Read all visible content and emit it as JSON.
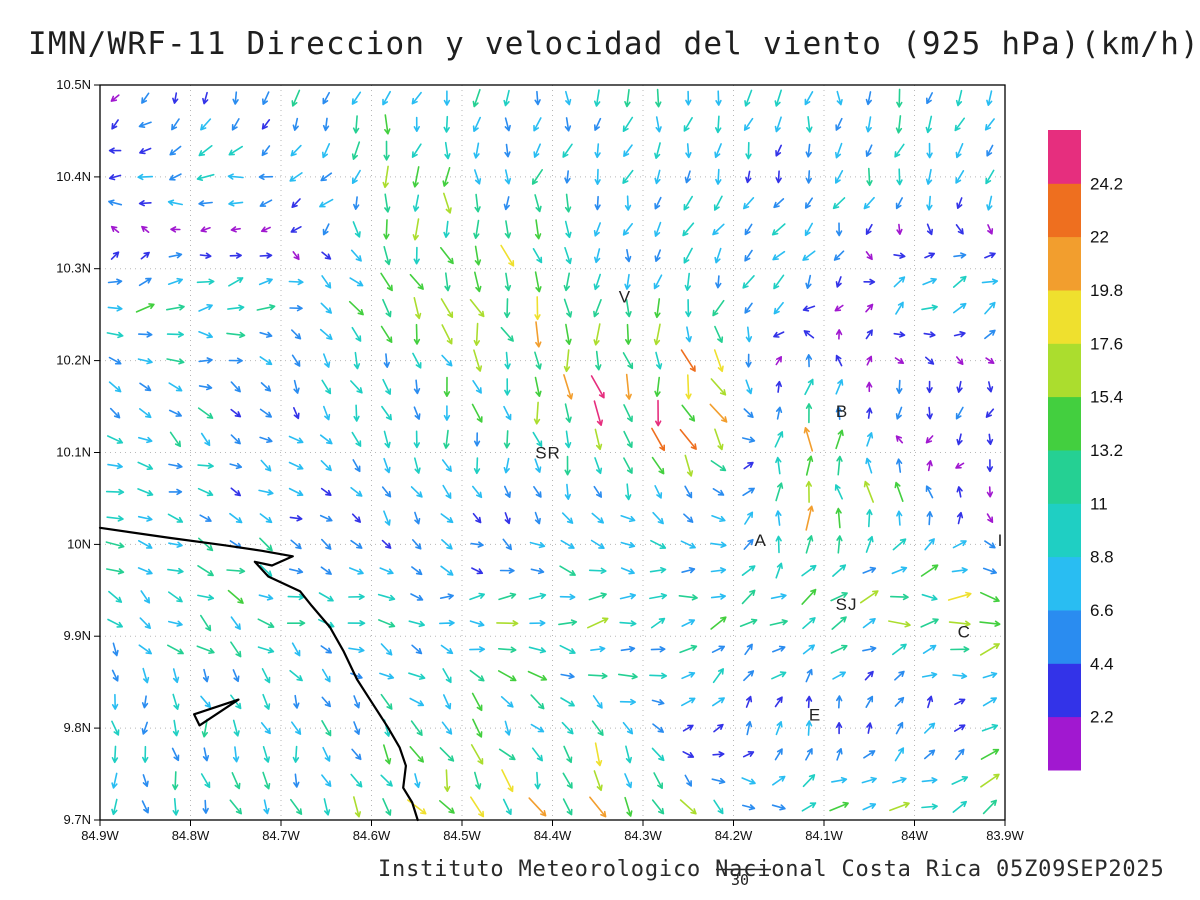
{
  "chart_data": {
    "type": "vector_field",
    "title": "IMN/WRF-11 Direccion y velocidad del viento (925 hPa)(km/h)",
    "credit": "Instituto Meteorologico Nacional Costa Rica 05Z09SEP2025",
    "footnote": "30",
    "units": "km/h",
    "level": "925 hPa",
    "ranges": {
      "lon_west": 84.9,
      "lon_east": 83.9,
      "lat_north": 10.5,
      "lat_south": 9.7
    },
    "x_axis": {
      "labels": [
        "84.9W",
        "84.8W",
        "84.7W",
        "84.6W",
        "84.5W",
        "84.4W",
        "84.3W",
        "84.2W",
        "84.1W",
        "84W",
        "83.9W"
      ],
      "values": [
        84.9,
        84.8,
        84.7,
        84.6,
        84.5,
        84.4,
        84.3,
        84.2,
        84.1,
        84.0,
        83.9
      ]
    },
    "y_axis": {
      "labels": [
        "10.5N",
        "10.4N",
        "10.3N",
        "10.2N",
        "10.1N",
        "10N",
        "9.9N",
        "9.8N",
        "9.7N"
      ],
      "values": [
        10.5,
        10.4,
        10.3,
        10.2,
        10.1,
        10.0,
        9.9,
        9.8,
        9.7
      ]
    },
    "colorbar": {
      "levels": [
        2.2,
        4.4,
        6.6,
        8.8,
        11,
        13.2,
        15.4,
        17.6,
        19.8,
        22,
        24.2
      ],
      "labels": [
        "2.2",
        "4.4",
        "6.6",
        "8.8",
        "11",
        "13.2",
        "15.4",
        "17.6",
        "19.8",
        "22",
        "24.2"
      ],
      "colors": [
        "#a118d0",
        "#3333e8",
        "#2a8cf0",
        "#29bdf2",
        "#1fcfc3",
        "#25d093",
        "#43cf3f",
        "#abdd2e",
        "#efe02e",
        "#f29e2e",
        "#ee6f1f",
        "#e62e7e"
      ]
    },
    "stations": [
      {
        "label": "V",
        "lonW": 84.32,
        "lat": 10.27
      },
      {
        "label": "B",
        "lonW": 84.08,
        "lat": 10.145
      },
      {
        "label": "SR",
        "lonW": 84.405,
        "lat": 10.1
      },
      {
        "label": "A",
        "lonW": 84.17,
        "lat": 10.005
      },
      {
        "label": "I",
        "lonW": 83.905,
        "lat": 10.005
      },
      {
        "label": "SJ",
        "lonW": 84.075,
        "lat": 9.935
      },
      {
        "label": "C",
        "lonW": 83.945,
        "lat": 9.905
      },
      {
        "label": "E",
        "lonW": 84.11,
        "lat": 9.815
      }
    ],
    "coastline": [
      [
        84.9,
        10.018
      ],
      [
        84.823,
        10.007
      ],
      [
        84.762,
        9.999
      ],
      [
        84.721,
        9.993
      ],
      [
        84.687,
        9.987
      ],
      [
        84.71,
        9.977
      ],
      [
        84.729,
        9.981
      ],
      [
        84.714,
        9.965
      ],
      [
        84.679,
        9.949
      ],
      [
        84.666,
        9.933
      ],
      [
        84.646,
        9.91
      ],
      [
        84.631,
        9.884
      ],
      [
        84.616,
        9.853
      ],
      [
        84.599,
        9.827
      ],
      [
        84.582,
        9.801
      ],
      [
        84.569,
        9.779
      ],
      [
        84.562,
        9.759
      ],
      [
        84.565,
        9.735
      ],
      [
        84.555,
        9.719
      ],
      [
        84.549,
        9.7
      ]
    ],
    "islet": [
      [
        84.796,
        9.815
      ],
      [
        84.747,
        9.831
      ],
      [
        84.79,
        9.803
      ],
      [
        84.796,
        9.815
      ]
    ],
    "field": {
      "cols": 10,
      "rows": 8,
      "speed": [
        [
          3,
          5,
          8,
          9,
          8,
          8,
          8,
          8,
          8,
          6
        ],
        [
          6,
          9,
          7,
          13,
          9,
          7,
          6,
          7,
          8,
          7
        ],
        [
          9,
          12,
          7,
          15,
          17,
          9,
          8,
          8,
          9,
          9
        ],
        [
          7,
          8,
          6,
          9,
          12,
          21,
          23,
          15,
          7,
          5
        ],
        [
          9,
          8,
          6,
          6,
          5,
          6,
          8,
          17,
          12,
          4
        ],
        [
          8,
          10,
          9,
          8,
          11,
          13,
          10,
          10,
          15,
          17
        ],
        [
          6,
          8,
          7,
          9,
          12,
          10,
          7,
          5,
          4,
          6
        ],
        [
          9,
          8,
          10,
          13,
          15,
          18,
          13,
          9,
          14,
          19
        ]
      ],
      "dir": [
        [
          260,
          255,
          250,
          255,
          260,
          265,
          260,
          265,
          265,
          260
        ],
        [
          185,
          190,
          200,
          260,
          265,
          255,
          240,
          245,
          250,
          245
        ],
        [
          20,
          10,
          350,
          300,
          290,
          260,
          250,
          230,
          40,
          30
        ],
        [
          330,
          320,
          300,
          290,
          285,
          280,
          290,
          85,
          260,
          245
        ],
        [
          350,
          340,
          330,
          300,
          280,
          300,
          320,
          95,
          90,
          270
        ],
        [
          320,
          330,
          340,
          355,
          5,
          10,
          15,
          25,
          5,
          0
        ],
        [
          270,
          280,
          290,
          300,
          310,
          320,
          60,
          80,
          100,
          40
        ],
        [
          280,
          285,
          295,
          300,
          290,
          285,
          310,
          20,
          15,
          25
        ]
      ]
    },
    "arrow_grid": {
      "nx": 30,
      "ny": 28
    }
  }
}
